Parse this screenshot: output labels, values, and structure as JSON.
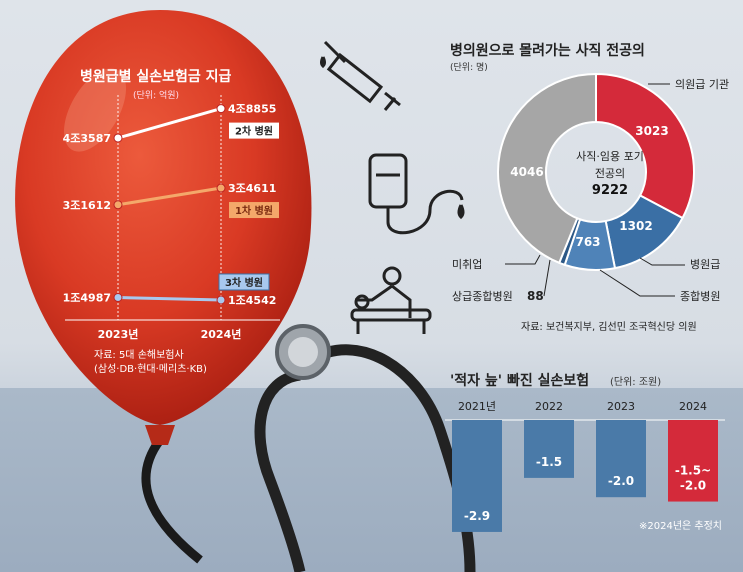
{
  "chart_data": [
    {
      "type": "line",
      "title": "병원급별 실손보험금 지급",
      "unit": "(단위: 억원)",
      "categories": [
        "2023년",
        "2024년"
      ],
      "series": [
        {
          "name": "2차 병원",
          "values": [
            43587,
            48855
          ],
          "labels": [
            "4조3587",
            "4조8855"
          ],
          "color": "#ffffff"
        },
        {
          "name": "1차 병원",
          "values": [
            31612,
            34611
          ],
          "labels": [
            "3조1612",
            "3조4611"
          ],
          "color": "#f4a86a"
        },
        {
          "name": "3차 병원",
          "values": [
            14987,
            14542
          ],
          "labels": [
            "1조4987",
            "1조4542"
          ],
          "color": "#a8c8ee"
        }
      ],
      "source": "자료: 5대 손해보험사",
      "source2": "(삼성·DB·현대·메리츠·KB)"
    },
    {
      "type": "pie",
      "title": "병의원으로 몰려가는 사직 전공의",
      "unit": "(단위: 명)",
      "center_label_1": "사직·임용 포기",
      "center_label_2": "전공의",
      "total": "9222",
      "slices": [
        {
          "name": "의원급 기관",
          "value": 3023,
          "color": "#d42a3a"
        },
        {
          "name": "병원급",
          "value": 1302,
          "color": "#3a6fa5"
        },
        {
          "name": "종합병원",
          "value": 763,
          "color": "#4f83b8"
        },
        {
          "name": "상급종합병원",
          "value": 88,
          "color": "#2c5886"
        },
        {
          "name": "미취업",
          "value": 4046,
          "color": "#a6a6a6"
        }
      ],
      "source": "자료: 보건복지부, 김선민 조국혁신당 의원"
    },
    {
      "type": "bar",
      "title": "'적자 늪' 빠진 실손보험",
      "unit": "(단위: 조원)",
      "categories": [
        "2021년",
        "2022",
        "2023",
        "2024"
      ],
      "values": [
        -2.9,
        -1.5,
        -2.0,
        -1.75
      ],
      "labels": [
        "-2.9",
        "-1.5",
        "-2.0",
        "-1.5~\n-2.0"
      ],
      "colors": [
        "#4a7aa8",
        "#4a7aa8",
        "#4a7aa8",
        "#d42a3a"
      ],
      "ylim": [
        -3.0,
        0
      ],
      "note": "※2024년은 추정치"
    }
  ],
  "icons": [
    "syringe-icon",
    "iv-bag-icon",
    "massage-icon",
    "stethoscope-icon",
    "balloon-icon"
  ]
}
